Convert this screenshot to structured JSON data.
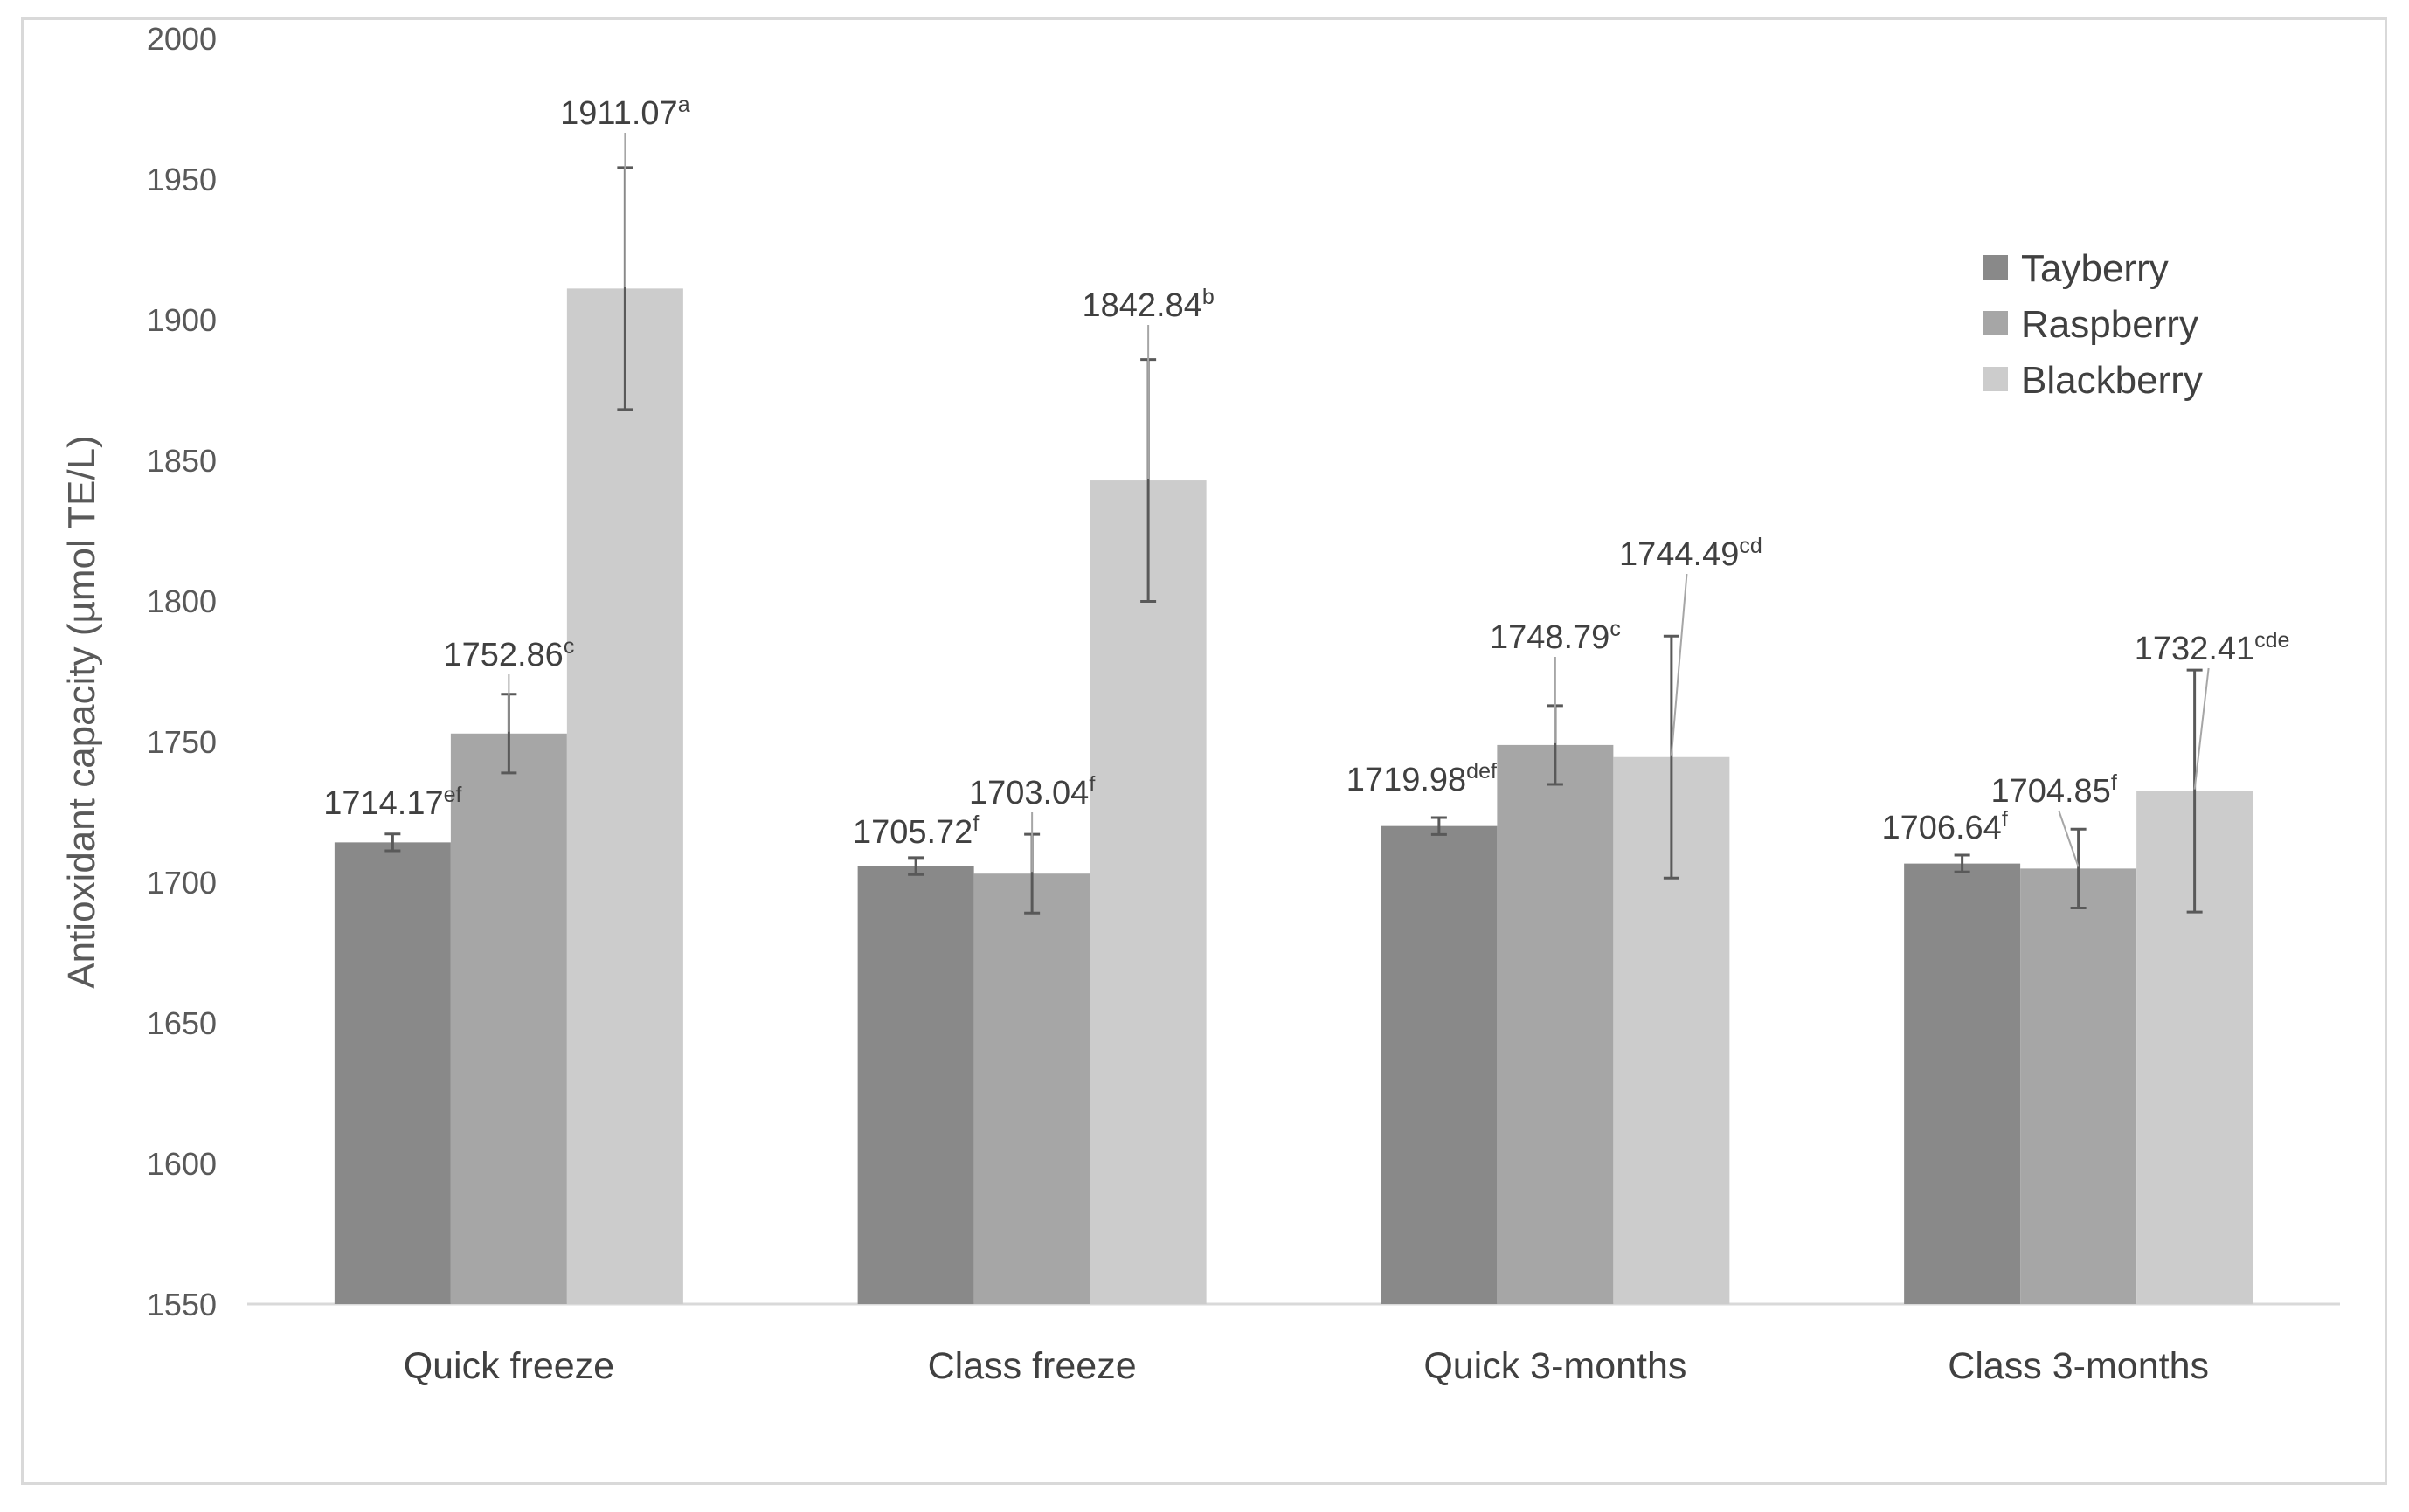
{
  "chart_data": {
    "type": "bar",
    "ylabel": "Antioxidant capacity (µmol TE/L)",
    "xlabel": "",
    "ylim": [
      1550,
      2000
    ],
    "yticks": [
      1550,
      1600,
      1650,
      1700,
      1750,
      1800,
      1850,
      1900,
      1950,
      2000
    ],
    "grid": false,
    "legend_position": "top-right",
    "categories": [
      "Quick freeze",
      "Class freeze",
      "Quick 3-months",
      "Class 3-months"
    ],
    "series": [
      {
        "name": "Tayberry",
        "color": "#898989",
        "values": [
          1714.17,
          1705.72,
          1719.98,
          1706.64
        ],
        "errors": [
          3,
          3,
          3,
          3
        ],
        "labels": [
          "1714.17",
          "1705.72",
          "1719.98",
          "1706.64"
        ],
        "letters": [
          "ef",
          "f",
          "def",
          "f"
        ]
      },
      {
        "name": "Raspberry",
        "color": "#a6a6a6",
        "values": [
          1752.86,
          1703.04,
          1748.79,
          1704.85
        ],
        "errors": [
          14,
          14,
          14,
          14
        ],
        "labels": [
          "1752.86",
          "1703.04",
          "1748.79",
          "1704.85"
        ],
        "letters": [
          "c",
          "f",
          "c",
          "f"
        ]
      },
      {
        "name": "Blackberry",
        "color": "#cccccc",
        "values": [
          1911.07,
          1842.84,
          1744.49,
          1732.41
        ],
        "errors": [
          43,
          43,
          43,
          43
        ],
        "labels": [
          "1911.07",
          "1842.84",
          "1744.49",
          "1732.41"
        ],
        "letters": [
          "a",
          "b",
          "cd",
          "cde"
        ]
      }
    ]
  }
}
